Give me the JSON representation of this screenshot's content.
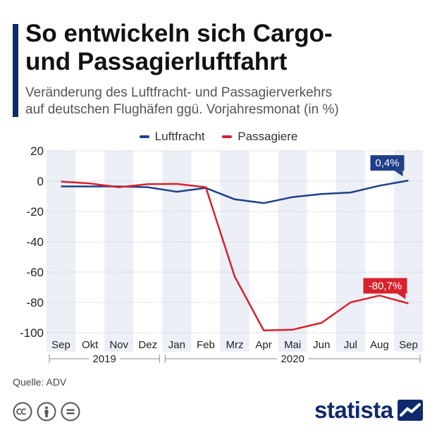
{
  "header": {
    "title_line1": "So entwickeln sich Cargo-",
    "title_line2": "und Passagierluftfahrt",
    "subtitle_line1": "Veränderung des Luftfracht- und Passagierverkehrs",
    "subtitle_line2": "auf deutschen Flughäfen ggü. Vorjahresmonat (in %)"
  },
  "footer": {
    "source": "Quelle: ADV",
    "brand": "statista",
    "license_icons": [
      "cc-icon",
      "attribution-icon",
      "no-derivatives-icon"
    ]
  },
  "chart_data": {
    "type": "line",
    "categories": [
      "Sep",
      "Okt",
      "Nov",
      "Dez",
      "Jan",
      "Feb",
      "Mrz",
      "Apr",
      "Mai",
      "Jun",
      "Jul",
      "Aug",
      "Sep"
    ],
    "year_groups": [
      {
        "label": "2019",
        "start": 0,
        "end": 3
      },
      {
        "label": "2020",
        "start": 4,
        "end": 12
      }
    ],
    "series": [
      {
        "name": "Luftfracht",
        "color": "#1f3f8a",
        "values": [
          -3.5,
          -3.5,
          -3.5,
          -4,
          -7,
          -4.5,
          -12,
          -14.5,
          -10.5,
          -8.5,
          -7.5,
          -3,
          0.4
        ],
        "end_label": "0,4%"
      },
      {
        "name": "Passagiere",
        "color": "#d7222d",
        "values": [
          -0.3,
          -1.5,
          -4,
          -2,
          -1.8,
          -4,
          -63,
          -98.5,
          -98,
          -93.5,
          -80,
          -75.5,
          -80.7
        ],
        "end_label": "-80,7%"
      }
    ],
    "y_ticks": [
      20,
      0,
      -20,
      -40,
      -60,
      -80,
      -100
    ],
    "ylim": [
      -105,
      20
    ],
    "grid": true,
    "legend_position": "top-center",
    "alternate_bands": true
  }
}
